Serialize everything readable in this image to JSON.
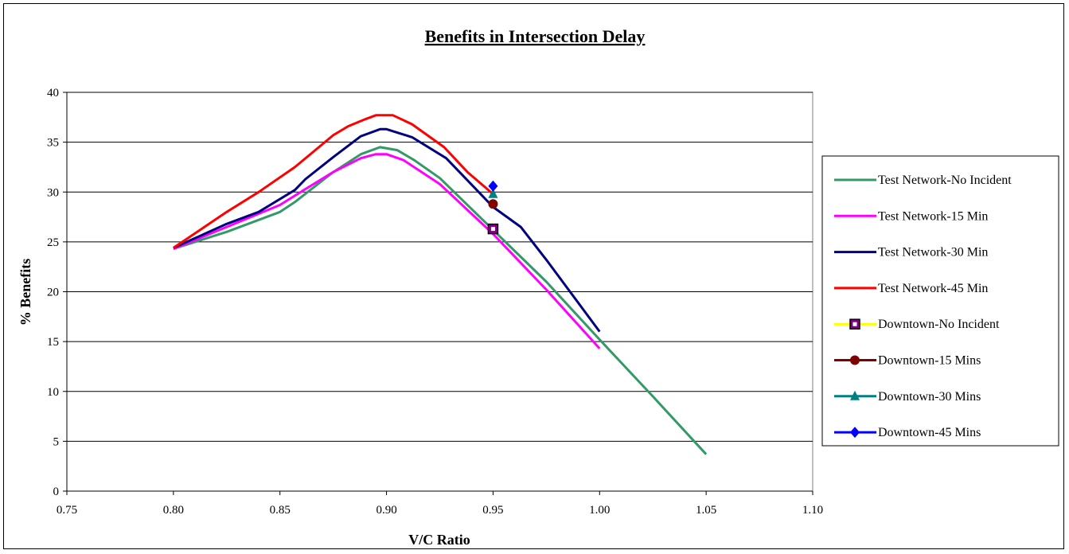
{
  "chart_data": {
    "type": "line",
    "title": "Benefits in Intersection Delay",
    "xlabel": "V/C Ratio",
    "ylabel": "% Benefits",
    "xlim": [
      0.75,
      1.1
    ],
    "ylim": [
      0,
      40
    ],
    "x_ticks": [
      "0.75",
      "0.80",
      "0.85",
      "0.90",
      "0.95",
      "1.00",
      "1.05",
      "1.10"
    ],
    "y_ticks": [
      "0",
      "5",
      "10",
      "15",
      "20",
      "25",
      "30",
      "35",
      "40"
    ],
    "grid": "horizontal",
    "legend_position": "right",
    "series": [
      {
        "name": "Test Network-No Incident",
        "color": "#339966",
        "marker": "none",
        "points": [
          [
            0.8,
            24.3
          ],
          [
            0.825,
            26.0
          ],
          [
            0.85,
            28.0
          ],
          [
            0.857,
            29.0
          ],
          [
            0.875,
            32.0
          ],
          [
            0.888,
            33.8
          ],
          [
            0.897,
            34.5
          ],
          [
            0.905,
            34.2
          ],
          [
            0.913,
            33.2
          ],
          [
            0.925,
            31.4
          ],
          [
            0.95,
            26.2
          ],
          [
            0.975,
            21.0
          ],
          [
            1.0,
            15.2
          ],
          [
            1.025,
            9.5
          ],
          [
            1.05,
            3.7
          ]
        ]
      },
      {
        "name": "Test Network-15 Min",
        "color": "#ff00ff",
        "marker": "none",
        "points": [
          [
            0.8,
            24.3
          ],
          [
            0.825,
            26.5
          ],
          [
            0.85,
            28.7
          ],
          [
            0.862,
            30.3
          ],
          [
            0.875,
            32.0
          ],
          [
            0.888,
            33.4
          ],
          [
            0.895,
            33.8
          ],
          [
            0.9,
            33.8
          ],
          [
            0.908,
            33.2
          ],
          [
            0.925,
            30.8
          ],
          [
            0.95,
            25.8
          ],
          [
            0.975,
            20.2
          ],
          [
            1.0,
            14.3
          ]
        ]
      },
      {
        "name": "Test Network-30 Min",
        "color": "#000080",
        "marker": "none",
        "points": [
          [
            0.8,
            24.4
          ],
          [
            0.825,
            26.8
          ],
          [
            0.84,
            28.0
          ],
          [
            0.857,
            30.2
          ],
          [
            0.862,
            31.3
          ],
          [
            0.875,
            33.5
          ],
          [
            0.888,
            35.6
          ],
          [
            0.897,
            36.3
          ],
          [
            0.9,
            36.3
          ],
          [
            0.912,
            35.5
          ],
          [
            0.928,
            33.4
          ],
          [
            0.95,
            28.5
          ],
          [
            0.963,
            26.5
          ],
          [
            0.975,
            23.2
          ],
          [
            1.0,
            16.0
          ]
        ]
      },
      {
        "name": "Test Network-45 Min",
        "color": "#ff0000",
        "marker": "none",
        "points": [
          [
            0.8,
            24.4
          ],
          [
            0.825,
            28.0
          ],
          [
            0.84,
            30.0
          ],
          [
            0.857,
            32.5
          ],
          [
            0.875,
            35.7
          ],
          [
            0.882,
            36.6
          ],
          [
            0.89,
            37.3
          ],
          [
            0.895,
            37.7
          ],
          [
            0.903,
            37.7
          ],
          [
            0.912,
            36.8
          ],
          [
            0.927,
            34.5
          ],
          [
            0.938,
            32.0
          ],
          [
            0.95,
            29.8
          ]
        ]
      },
      {
        "name": "Downtown-No Incident",
        "color": "#ffff00",
        "marker": "square",
        "marker_color": "#800080",
        "points": [
          [
            0.95,
            26.3
          ]
        ]
      },
      {
        "name": "Downtown-15 Mins",
        "color": "#800000",
        "marker": "circle",
        "marker_color": "#800000",
        "points": [
          [
            0.95,
            28.8
          ]
        ]
      },
      {
        "name": "Downtown-30 Mins",
        "color": "#008080",
        "marker": "triangle",
        "marker_color": "#008080",
        "points": [
          [
            0.95,
            29.8
          ]
        ]
      },
      {
        "name": "Downtown-45 Mins",
        "color": "#0000ff",
        "marker": "diamond",
        "marker_color": "#0000ff",
        "points": [
          [
            0.95,
            30.6
          ]
        ]
      }
    ]
  }
}
